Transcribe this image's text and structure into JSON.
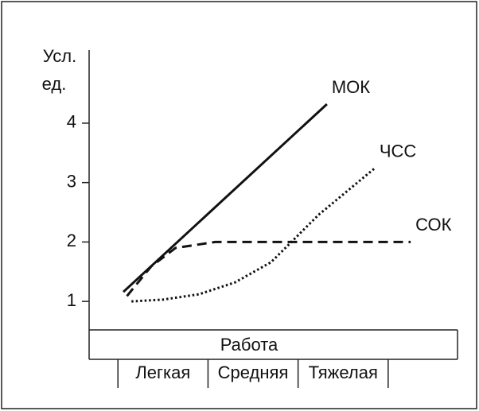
{
  "chart_data": {
    "type": "line",
    "ylabel": [
      "Усл.",
      "ед."
    ],
    "xlabel": "Работа",
    "categories": [
      "Легкая",
      "Средняя",
      "Тяжелая"
    ],
    "xlim": [
      -0.32,
      3.77
    ],
    "ylim": [
      0.52,
      5.23
    ],
    "yticks": [
      1,
      2,
      3,
      4
    ],
    "series": [
      {
        "name": "МОК",
        "color": "#111111",
        "style": "solid",
        "x": [
          0.06,
          2.32
        ],
        "values": [
          1.16,
          4.32
        ]
      },
      {
        "name": "ЧСС",
        "color": "#111111",
        "style": "dotted",
        "x": [
          0.15,
          0.5,
          0.9,
          1.3,
          1.7,
          2.23,
          2.85
        ],
        "values": [
          1.0,
          1.03,
          1.12,
          1.32,
          1.66,
          2.46,
          3.24
        ]
      },
      {
        "name": "СОК",
        "color": "#111111",
        "style": "dashed",
        "x": [
          0.1,
          0.37,
          0.64,
          1.08,
          3.25
        ],
        "values": [
          1.09,
          1.59,
          1.9,
          2.0,
          2.0
        ]
      }
    ]
  }
}
